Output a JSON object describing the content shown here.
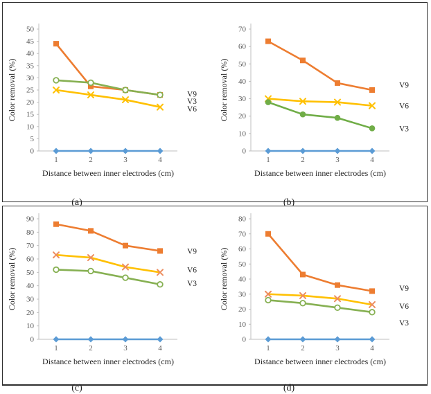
{
  "chart_data": [
    {
      "id": "a",
      "type": "line",
      "caption": "(a)",
      "xlabel": "Distance between inner electrodes (cm)",
      "ylabel": "Color removal (%)",
      "x": [
        1,
        2,
        3,
        4
      ],
      "x_tick_labels": [
        "1",
        "2",
        "3",
        "4"
      ],
      "ylim": [
        0,
        50
      ],
      "y_ticks": [
        0,
        5,
        10,
        15,
        20,
        25,
        30,
        35,
        40,
        45,
        50
      ],
      "grid": false,
      "legend_position": "right-of-last-point",
      "series": [
        {
          "name": "V9",
          "values": [
            44,
            26.5,
            25,
            23
          ],
          "color": "#ED7D31",
          "marker": "square",
          "marker_color": "#ED7D31",
          "label_y": 23.5
        },
        {
          "name": "V3",
          "values": [
            29,
            28,
            25,
            23
          ],
          "color": "#86B052",
          "marker": "circle-open",
          "marker_color": "#86B052",
          "label_y": 20.5
        },
        {
          "name": "V6",
          "values": [
            25,
            23,
            21,
            18
          ],
          "color": "#FFC000",
          "marker": "x",
          "marker_color": "#FFC000",
          "label_y": 17.3
        },
        {
          "name": "",
          "values": [
            0,
            0,
            0,
            0
          ],
          "color": "#5B9BD5",
          "marker": "diamond",
          "marker_color": "#5B9BD5",
          "label_y": null
        }
      ]
    },
    {
      "id": "b",
      "type": "line",
      "caption": "(b)",
      "xlabel": "Distance between inner electrodes (cm)",
      "ylabel": "Color removal (%)",
      "x": [
        1,
        2,
        3,
        4
      ],
      "x_tick_labels": [
        "1",
        "2",
        "3",
        "4"
      ],
      "ylim": [
        0,
        70
      ],
      "y_ticks": [
        0,
        10,
        20,
        30,
        40,
        50,
        60,
        70
      ],
      "grid": false,
      "legend_position": "right-of-last-point",
      "series": [
        {
          "name": "V9",
          "values": [
            63,
            52,
            39,
            35
          ],
          "color": "#ED7D31",
          "marker": "square",
          "marker_color": "#ED7D31",
          "label_y": 38
        },
        {
          "name": "V6",
          "values": [
            30,
            28.5,
            28,
            26
          ],
          "color": "#FFC000",
          "marker": "x",
          "marker_color": "#FFC000",
          "label_y": 26
        },
        {
          "name": "V3",
          "values": [
            28,
            21,
            19,
            13
          ],
          "color": "#70AD47",
          "marker": "circle-filled",
          "marker_color": "#70AD47",
          "label_y": 13
        },
        {
          "name": "",
          "values": [
            0,
            0,
            0,
            0
          ],
          "color": "#5B9BD5",
          "marker": "diamond",
          "marker_color": "#5B9BD5",
          "label_y": null
        }
      ]
    },
    {
      "id": "c",
      "type": "line",
      "caption": "(c)",
      "xlabel": "Distance between inner electrodes (cm)",
      "ylabel": "Color removal (%)",
      "x": [
        1,
        2,
        3,
        4
      ],
      "x_tick_labels": [
        "1",
        "2",
        "3",
        "4"
      ],
      "ylim": [
        0,
        90
      ],
      "y_ticks": [
        0,
        10,
        20,
        30,
        40,
        50,
        60,
        70,
        80,
        90
      ],
      "grid": false,
      "legend_position": "right-of-last-point",
      "series": [
        {
          "name": "V9",
          "values": [
            86,
            81,
            70,
            66
          ],
          "color": "#ED7D31",
          "marker": "square",
          "marker_color": "#ED7D31",
          "label_y": 66
        },
        {
          "name": "V6",
          "values": [
            63,
            61,
            54,
            50
          ],
          "color": "#FFC000",
          "marker": "x",
          "marker_color": "#ED8C5E",
          "label_y": 52
        },
        {
          "name": "V3",
          "values": [
            52,
            51,
            46,
            41
          ],
          "color": "#86B052",
          "marker": "circle-open",
          "marker_color": "#86B052",
          "label_y": 42
        },
        {
          "name": "",
          "values": [
            0,
            0,
            0,
            0
          ],
          "color": "#5B9BD5",
          "marker": "diamond",
          "marker_color": "#5B9BD5",
          "label_y": null
        }
      ]
    },
    {
      "id": "d",
      "type": "line",
      "caption": "(d)",
      "xlabel": "Distance between inner electrodes (cm)",
      "ylabel": "Color removal (%)",
      "x": [
        1,
        2,
        3,
        4
      ],
      "x_tick_labels": [
        "1",
        "2",
        "3",
        "4"
      ],
      "ylim": [
        0,
        80
      ],
      "y_ticks": [
        0,
        10,
        20,
        30,
        40,
        50,
        60,
        70,
        80
      ],
      "grid": false,
      "legend_position": "right-of-last-point",
      "series": [
        {
          "name": "V9",
          "values": [
            70,
            43,
            36,
            32
          ],
          "color": "#ED7D31",
          "marker": "square",
          "marker_color": "#ED7D31",
          "label_y": 34
        },
        {
          "name": "V6",
          "values": [
            30,
            29,
            27,
            23
          ],
          "color": "#FFC000",
          "marker": "x",
          "marker_color": "#ED8C5E",
          "label_y": 22
        },
        {
          "name": "V3",
          "values": [
            26,
            24,
            21,
            18
          ],
          "color": "#86B052",
          "marker": "circle-open",
          "marker_color": "#86B052",
          "label_y": 11
        },
        {
          "name": "",
          "values": [
            0,
            0,
            0,
            0
          ],
          "color": "#5B9BD5",
          "marker": "diamond",
          "marker_color": "#5B9BD5",
          "label_y": null
        }
      ]
    }
  ],
  "style": {
    "axis_color": "#BFBFBF",
    "tick_text_color": "#595959",
    "label_text_color": "#262626"
  }
}
